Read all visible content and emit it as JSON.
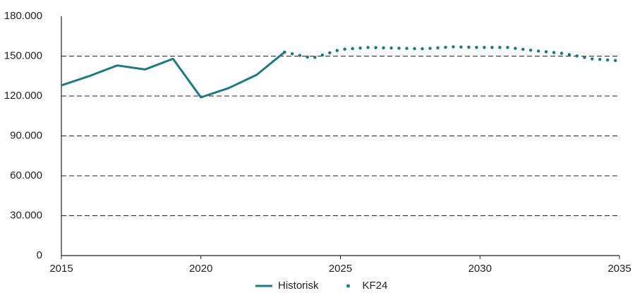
{
  "chart_data": {
    "type": "line",
    "x": [
      2015,
      2016,
      2017,
      2018,
      2019,
      2020,
      2021,
      2022,
      2023,
      2024,
      2025,
      2026,
      2027,
      2028,
      2029,
      2030,
      2031,
      2032,
      2033,
      2034,
      2035
    ],
    "series": [
      {
        "name": "Historisk",
        "color": "#1f7a80",
        "style": "solid",
        "values": [
          128000,
          135000,
          143000,
          140000,
          148000,
          119000,
          126000,
          136000,
          153000,
          null,
          null,
          null,
          null,
          null,
          null,
          null,
          null,
          null,
          null,
          null,
          null
        ]
      },
      {
        "name": "KF24",
        "color": "#1f7a80",
        "style": "dotted",
        "values": [
          null,
          null,
          null,
          null,
          null,
          null,
          null,
          null,
          153000,
          148500,
          155000,
          156500,
          156000,
          155500,
          157000,
          156500,
          156500,
          154000,
          152000,
          148000,
          146500
        ]
      }
    ],
    "xlim": [
      2015,
      2035
    ],
    "xticks": [
      2015,
      2020,
      2025,
      2030,
      2035
    ],
    "ylim": [
      0,
      180000
    ],
    "yticks": [
      0,
      {
        "value": 30000,
        "label": "30.000"
      },
      {
        "value": 60000,
        "label": "60.000"
      },
      {
        "value": 90000,
        "label": "90.000"
      },
      {
        "value": 120000,
        "label": "120.000"
      },
      {
        "value": 150000,
        "label": "150.000"
      },
      {
        "value": 180000,
        "label": "180.000"
      }
    ],
    "grid": true,
    "legend": "bottom"
  }
}
